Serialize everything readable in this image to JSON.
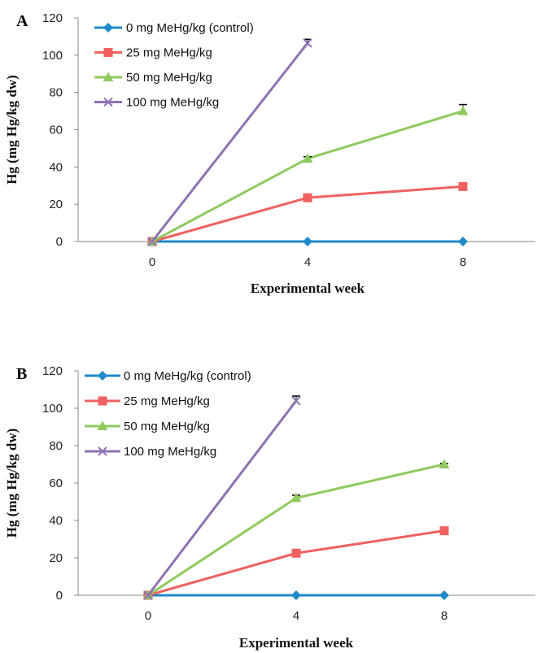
{
  "chart_data": [
    {
      "type": "line",
      "panel_label": "A",
      "x": [
        0,
        4,
        8
      ],
      "xlabel": "Experimental week",
      "ylabel": "Hg (mg Hg/kg dw)",
      "ylim": [
        0,
        120
      ],
      "yticks": [
        0,
        20,
        40,
        60,
        80,
        100,
        120
      ],
      "grid": false,
      "legend_position": "top-left",
      "series": [
        {
          "name": "0 mg MeHg/kg (control)",
          "values": [
            0,
            0,
            0
          ],
          "errors": [
            0,
            0,
            0
          ],
          "color": "#1f8ac9",
          "marker": "diamond"
        },
        {
          "name": "25 mg MeHg/kg",
          "values": [
            0,
            23.5,
            29.5
          ],
          "errors": [
            0,
            0,
            0
          ],
          "color": "#ef6160",
          "marker": "square"
        },
        {
          "name": "50 mg MeHg/kg",
          "values": [
            0,
            44.5,
            70
          ],
          "errors": [
            0,
            1,
            3.5
          ],
          "color": "#90c95f",
          "marker": "triangle"
        },
        {
          "name": "100 mg MeHg/kg",
          "values": [
            0,
            106.5,
            null
          ],
          "errors": [
            0,
            2,
            0
          ],
          "color": "#8e72b2",
          "marker": "x"
        }
      ]
    },
    {
      "type": "line",
      "panel_label": "B",
      "x": [
        0,
        4,
        8
      ],
      "xlabel": "Experimental week",
      "ylabel": "Hg (mg Hg/kg dw)",
      "ylim": [
        0,
        120
      ],
      "yticks": [
        0,
        20,
        40,
        60,
        80,
        100,
        120
      ],
      "grid": false,
      "legend_position": "top-left",
      "series": [
        {
          "name": "0 mg MeHg/kg (control)",
          "values": [
            0,
            0,
            0
          ],
          "errors": [
            0,
            0,
            0
          ],
          "color": "#1f8ac9",
          "marker": "diamond"
        },
        {
          "name": "25 mg MeHg/kg",
          "values": [
            0,
            22.5,
            34.5
          ],
          "errors": [
            0,
            0,
            0
          ],
          "color": "#ef6160",
          "marker": "square"
        },
        {
          "name": "50 mg MeHg/kg",
          "values": [
            0,
            52,
            70
          ],
          "errors": [
            0,
            1.5,
            0.5
          ],
          "color": "#90c95f",
          "marker": "triangle"
        },
        {
          "name": "100 mg MeHg/kg",
          "values": [
            0,
            104,
            null
          ],
          "errors": [
            0,
            2.5,
            0
          ],
          "color": "#8e72b2",
          "marker": "x"
        }
      ]
    }
  ]
}
